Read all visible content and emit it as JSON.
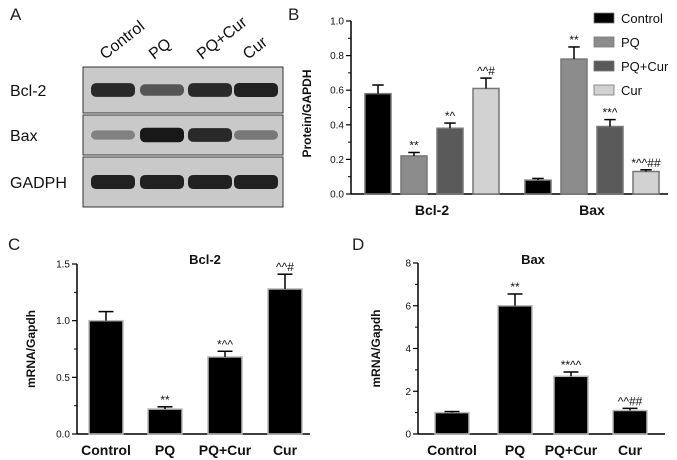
{
  "panel_labels": [
    "A",
    "B",
    "C",
    "D"
  ],
  "blot": {
    "columns": [
      "Control",
      "PQ",
      "PQ+Cur",
      "Cur"
    ],
    "rows": [
      {
        "label": "Bcl-2",
        "intensity": [
          0.85,
          0.6,
          0.85,
          0.9
        ]
      },
      {
        "label": "Bax",
        "intensity": [
          0.35,
          0.95,
          0.85,
          0.4
        ]
      },
      {
        "label": "GADPH",
        "intensity": [
          0.9,
          0.9,
          0.9,
          0.9
        ]
      }
    ]
  },
  "colors": {
    "Control": "#000000",
    "PQ": "#8c8c8c",
    "PQ+Cur": "#5a5a5a",
    "Cur": "#d2d2d2",
    "bar_black": "#000000",
    "bar_edge": "#bbbbbb"
  },
  "chart_data": [
    {
      "panel": "B",
      "type": "bar",
      "title": "",
      "xlabel": "",
      "ylabel": "Protein/GAPDH",
      "ylim": [
        0,
        1.0
      ],
      "yticks": [
        "0.0",
        "0.2",
        "0.4",
        "0.6",
        "0.8",
        "1.0"
      ],
      "categories": [
        "Bcl-2",
        "Bax"
      ],
      "legend_position": "top-right",
      "series": [
        {
          "name": "Control",
          "values": [
            0.58,
            0.08
          ],
          "errors": [
            0.05,
            0.01
          ],
          "annotations": [
            "",
            ""
          ]
        },
        {
          "name": "PQ",
          "values": [
            0.22,
            0.78
          ],
          "errors": [
            0.02,
            0.07
          ],
          "annotations": [
            "**",
            "**"
          ]
        },
        {
          "name": "PQ+Cur",
          "values": [
            0.38,
            0.39
          ],
          "errors": [
            0.03,
            0.04
          ],
          "annotations": [
            "*^",
            "**^"
          ]
        },
        {
          "name": "Cur",
          "values": [
            0.61,
            0.13
          ],
          "errors": [
            0.06,
            0.01
          ],
          "annotations": [
            "^^#",
            "*^^##"
          ]
        }
      ]
    },
    {
      "panel": "C",
      "type": "bar",
      "title": "Bcl-2",
      "xlabel": "",
      "ylabel": "mRNA/Gapdh",
      "ylim": [
        0,
        1.5
      ],
      "yticks": [
        "0.0",
        "0.5",
        "1.0",
        "1.5"
      ],
      "categories": [
        "Control",
        "PQ",
        "PQ+Cur",
        "Cur"
      ],
      "values": [
        1.0,
        0.22,
        0.68,
        1.28
      ],
      "errors": [
        0.08,
        0.02,
        0.05,
        0.13
      ],
      "annotations": [
        "",
        "**",
        "*^^",
        "^^#"
      ]
    },
    {
      "panel": "D",
      "type": "bar",
      "title": "Bax",
      "xlabel": "",
      "ylabel": "mRNA/Gapdh",
      "ylim": [
        0,
        8
      ],
      "yticks": [
        "0",
        "2",
        "4",
        "6",
        "8"
      ],
      "categories": [
        "Control",
        "PQ",
        "PQ+Cur",
        "Cur"
      ],
      "values": [
        1.0,
        6.0,
        2.7,
        1.1
      ],
      "errors": [
        0.05,
        0.55,
        0.2,
        0.1
      ],
      "annotations": [
        "",
        "**",
        "**^^",
        "^^##"
      ]
    }
  ]
}
